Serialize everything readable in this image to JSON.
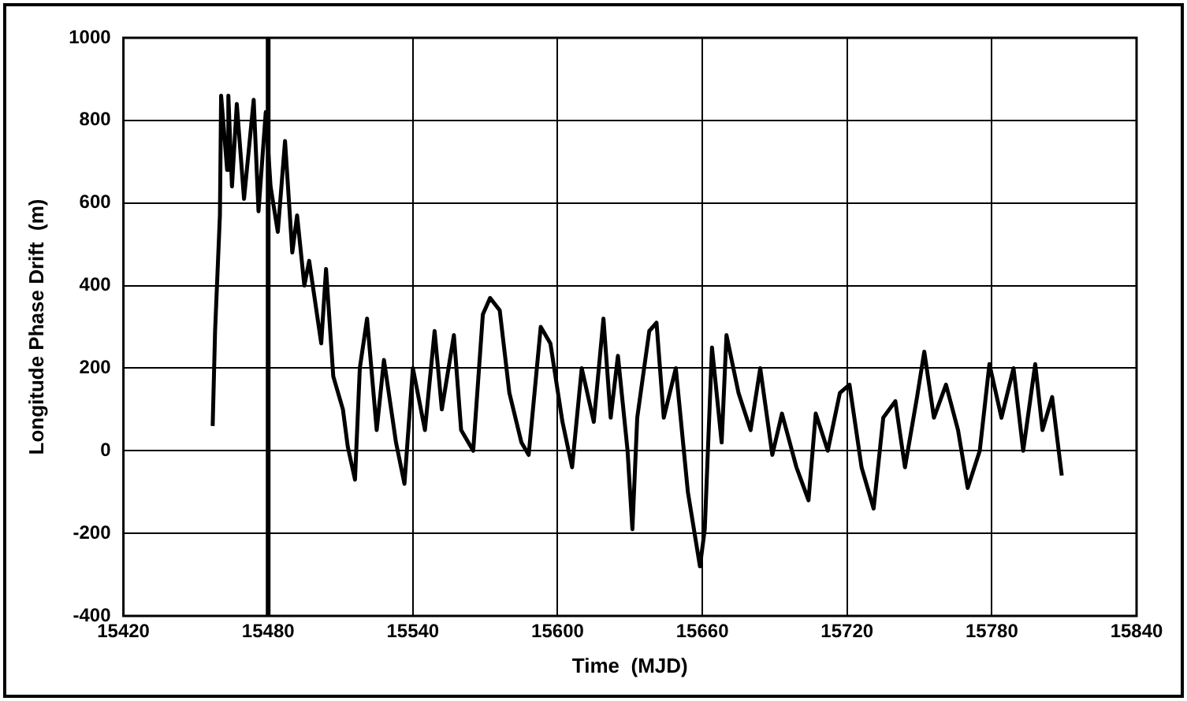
{
  "chart_data": {
    "type": "line",
    "xlabel": "Time  (MJD)",
    "ylabel": "Longitude Phase Drift  (m)",
    "xlim": [
      15420,
      15840
    ],
    "xticks": [
      15420,
      15480,
      15540,
      15600,
      15660,
      15720,
      15780,
      15840
    ],
    "ylim": [
      -400,
      1000
    ],
    "yticks": [
      -400,
      -200,
      0,
      200,
      400,
      600,
      800,
      1000
    ],
    "grid": true,
    "legend": false,
    "marker": "none",
    "line_style": "solid",
    "ref_lines": [
      {
        "axis": "x",
        "value": 15480,
        "color": "#000000"
      }
    ],
    "series": [
      {
        "color": "#000000",
        "x": [
          15457,
          15458,
          15460,
          15460.5,
          15463,
          15463.5,
          15465,
          15467,
          15470,
          15474,
          15476,
          15479,
          15481,
          15484,
          15487,
          15490,
          15492,
          15495,
          15497,
          15502,
          15504,
          15507,
          15511,
          15513,
          15516,
          15518,
          15521,
          15525,
          15528,
          15533,
          15536.5,
          15540,
          15545,
          15549,
          15552,
          15557,
          15560,
          15565,
          15569,
          15572,
          15576,
          15580,
          15585,
          15588,
          15593,
          15597,
          15602,
          15606,
          15610,
          15615,
          15619,
          15622,
          15625,
          15629,
          15631,
          15633,
          15638,
          15641,
          15644,
          15649,
          15654,
          15659,
          15661,
          15664,
          15668,
          15670,
          15675,
          15680,
          15684,
          15689,
          15693,
          15699,
          15704,
          15707,
          15712,
          15717,
          15721,
          15726,
          15731,
          15735,
          15740,
          15744,
          15749,
          15752,
          15756,
          15761,
          15766,
          15770,
          15775,
          15779,
          15784,
          15789,
          15793,
          15798,
          15801,
          15805,
          15809
        ],
        "values": [
          60,
          290,
          570,
          860,
          680,
          860,
          640,
          840,
          610,
          850,
          580,
          820,
          640,
          530,
          750,
          480,
          570,
          400,
          460,
          260,
          440,
          180,
          100,
          10,
          -70,
          200,
          320,
          50,
          220,
          20,
          -80,
          200,
          50,
          290,
          100,
          280,
          50,
          0,
          330,
          370,
          340,
          140,
          20,
          -10,
          300,
          260,
          70,
          -40,
          200,
          70,
          320,
          80,
          230,
          0,
          -190,
          80,
          290,
          310,
          80,
          200,
          -100,
          -280,
          -190,
          250,
          20,
          280,
          140,
          50,
          200,
          -10,
          90,
          -40,
          -120,
          90,
          0,
          140,
          160,
          -40,
          -140,
          80,
          120,
          -40,
          130,
          240,
          80,
          160,
          50,
          -90,
          0,
          210,
          80,
          200,
          0,
          210,
          50,
          130,
          -60
        ]
      }
    ]
  }
}
